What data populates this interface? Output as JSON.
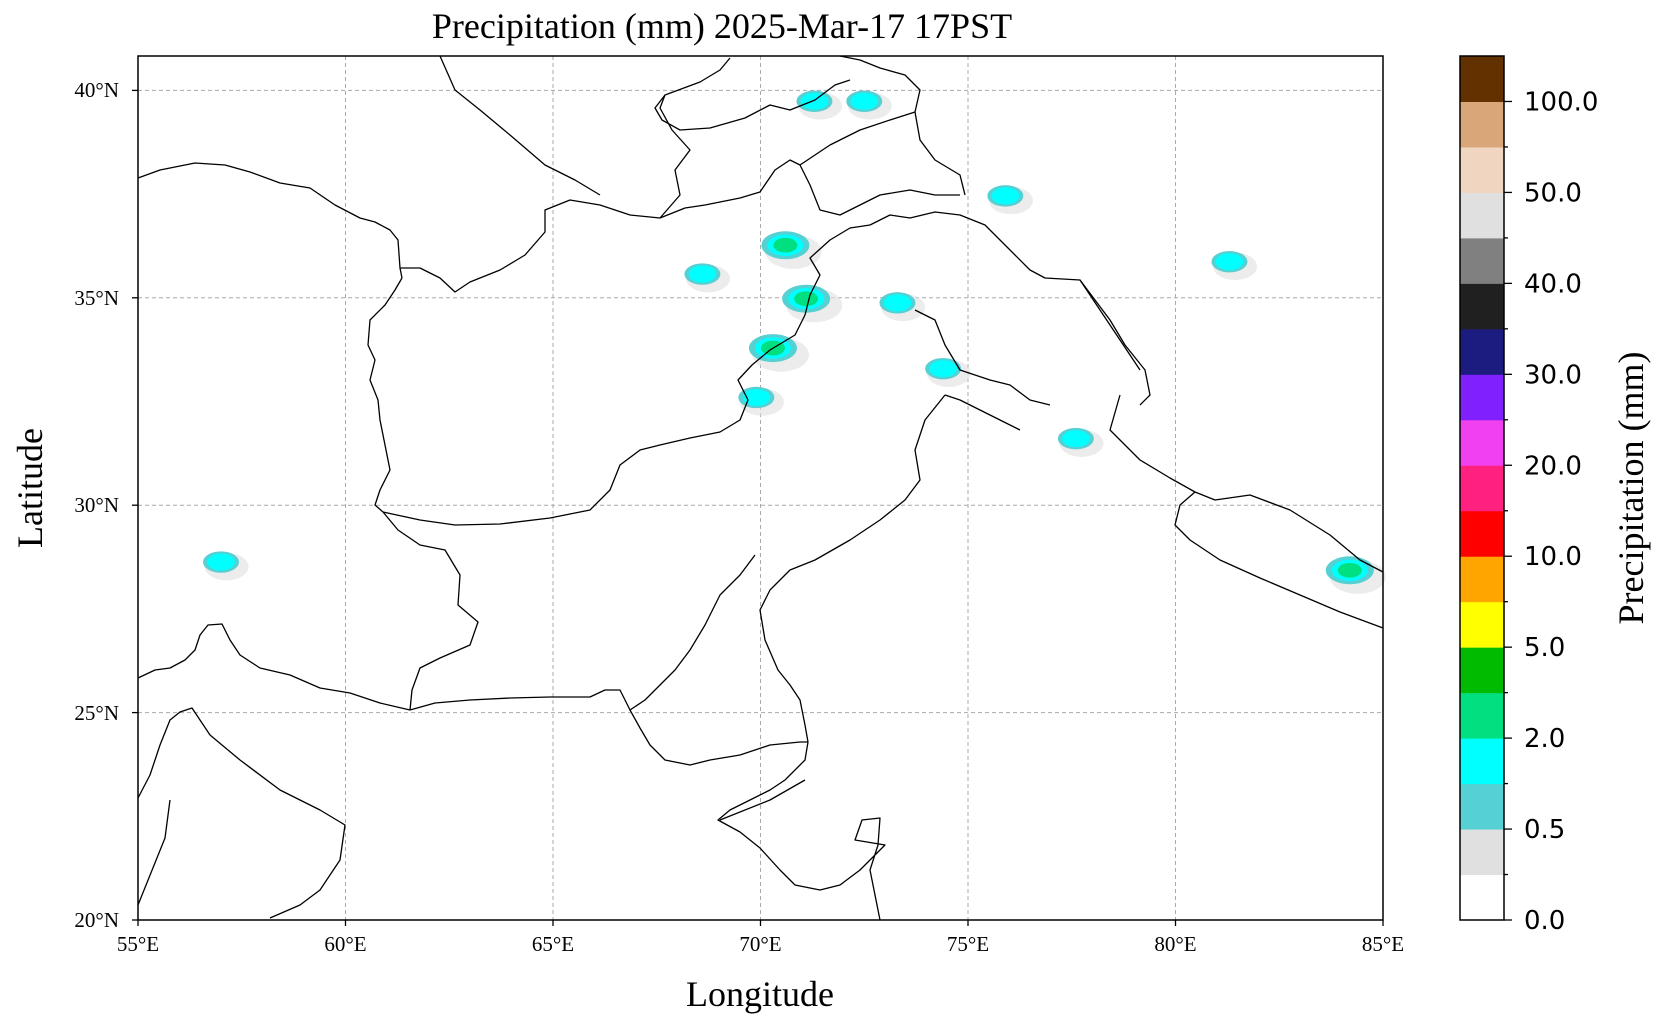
{
  "title": "Precipitation (mm)  2025-Mar-17 17PST",
  "xlabel": "Longitude",
  "ylabel": "Latitude",
  "x_ticks": [
    "55°E",
    "60°E",
    "65°E",
    "70°E",
    "75°E",
    "80°E",
    "85°E"
  ],
  "y_ticks": [
    "20°N",
    "25°N",
    "30°N",
    "35°N",
    "40°N"
  ],
  "map_extent": {
    "lon": [
      55,
      85
    ],
    "lat": [
      20,
      41
    ]
  },
  "colorbar": {
    "label": "Precipitation (mm)",
    "tick_labels": [
      "0.0",
      "0.5",
      "2.0",
      "5.0",
      "10.0",
      "20.0",
      "30.0",
      "40.0",
      "50.0",
      "100.0"
    ],
    "colors": [
      "#ffffff",
      "#e0e0e0",
      "#55d0d3",
      "#00ffff",
      "#00e080",
      "#00bb00",
      "#ffff00",
      "#ffa500",
      "#ff0000",
      "#ff2080",
      "#f040f0",
      "#8020ff",
      "#1c1c80",
      "#202020",
      "#808080",
      "#e0e0e0",
      "#f0d5c0",
      "#d9a67a",
      "#633000"
    ]
  },
  "precip_cells": [
    {
      "lon": 70.3,
      "lat": 33.9,
      "level": 3
    },
    {
      "lon": 70.6,
      "lat": 36.4,
      "level": 3
    },
    {
      "lon": 71.1,
      "lat": 35.1,
      "level": 3
    },
    {
      "lon": 72.5,
      "lat": 39.9,
      "level": 2
    },
    {
      "lon": 84.2,
      "lat": 28.5,
      "level": 3
    },
    {
      "lon": 74.4,
      "lat": 33.4,
      "level": 2
    },
    {
      "lon": 73.3,
      "lat": 35.0,
      "level": 2
    },
    {
      "lon": 68.6,
      "lat": 35.7,
      "level": 2
    },
    {
      "lon": 57.0,
      "lat": 28.7,
      "level": 2
    },
    {
      "lon": 75.9,
      "lat": 37.6,
      "level": 2
    },
    {
      "lon": 69.9,
      "lat": 32.7,
      "level": 2
    },
    {
      "lon": 77.6,
      "lat": 31.7,
      "level": 2
    },
    {
      "lon": 81.3,
      "lat": 36.0,
      "level": 2
    },
    {
      "lon": 71.3,
      "lat": 39.9,
      "level": 2
    }
  ]
}
